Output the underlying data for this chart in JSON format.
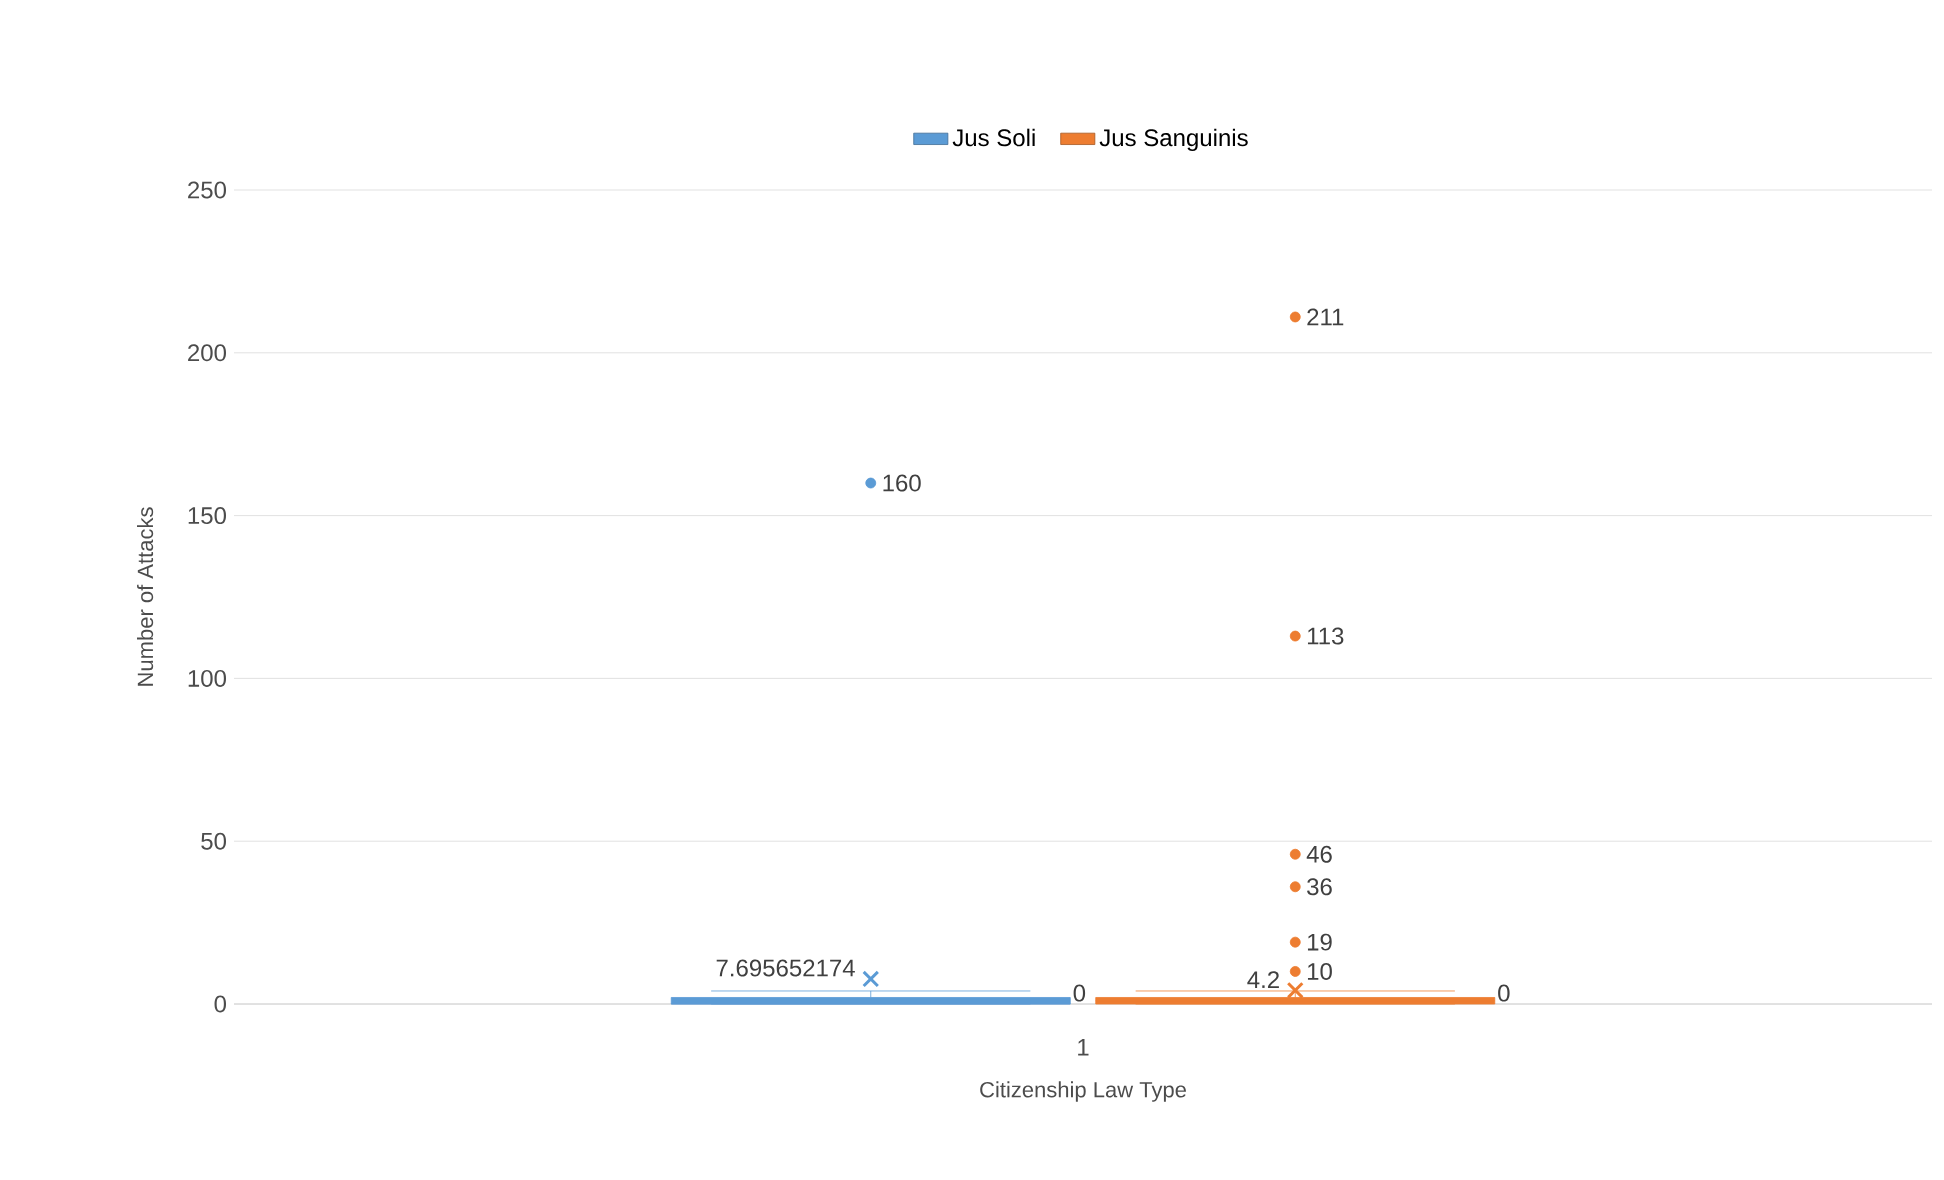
{
  "chart_data": {
    "type": "box",
    "xlabel": "Citizenship Law Type",
    "ylabel": "Number of Attacks",
    "categories": [
      "1"
    ],
    "series": [
      {
        "name": "Jus Soli",
        "color": "#5b9bd5",
        "boxes": [
          {
            "low": 0,
            "q1": 0,
            "median": 0,
            "q3": 2,
            "high": 4,
            "mean": 7.695652174,
            "outliers": [
              160
            ]
          }
        ]
      },
      {
        "name": "Jus Sanguinis",
        "color": "#ed7d31",
        "boxes": [
          {
            "low": 0,
            "q1": 0,
            "median": 1,
            "q3": 2,
            "high": 4,
            "mean": 4.2,
            "outliers": [
              211,
              113,
              46,
              36,
              19,
              10
            ]
          }
        ]
      }
    ],
    "annotations": [
      "160",
      "7.695652174",
      "0",
      "211",
      "113",
      "46",
      "36",
      "19",
      "10",
      "4.2",
      "0"
    ],
    "ylim": [
      0,
      250
    ],
    "yticks": [
      0,
      50,
      100,
      150,
      200,
      250
    ],
    "grid": "y",
    "legend": "top"
  }
}
